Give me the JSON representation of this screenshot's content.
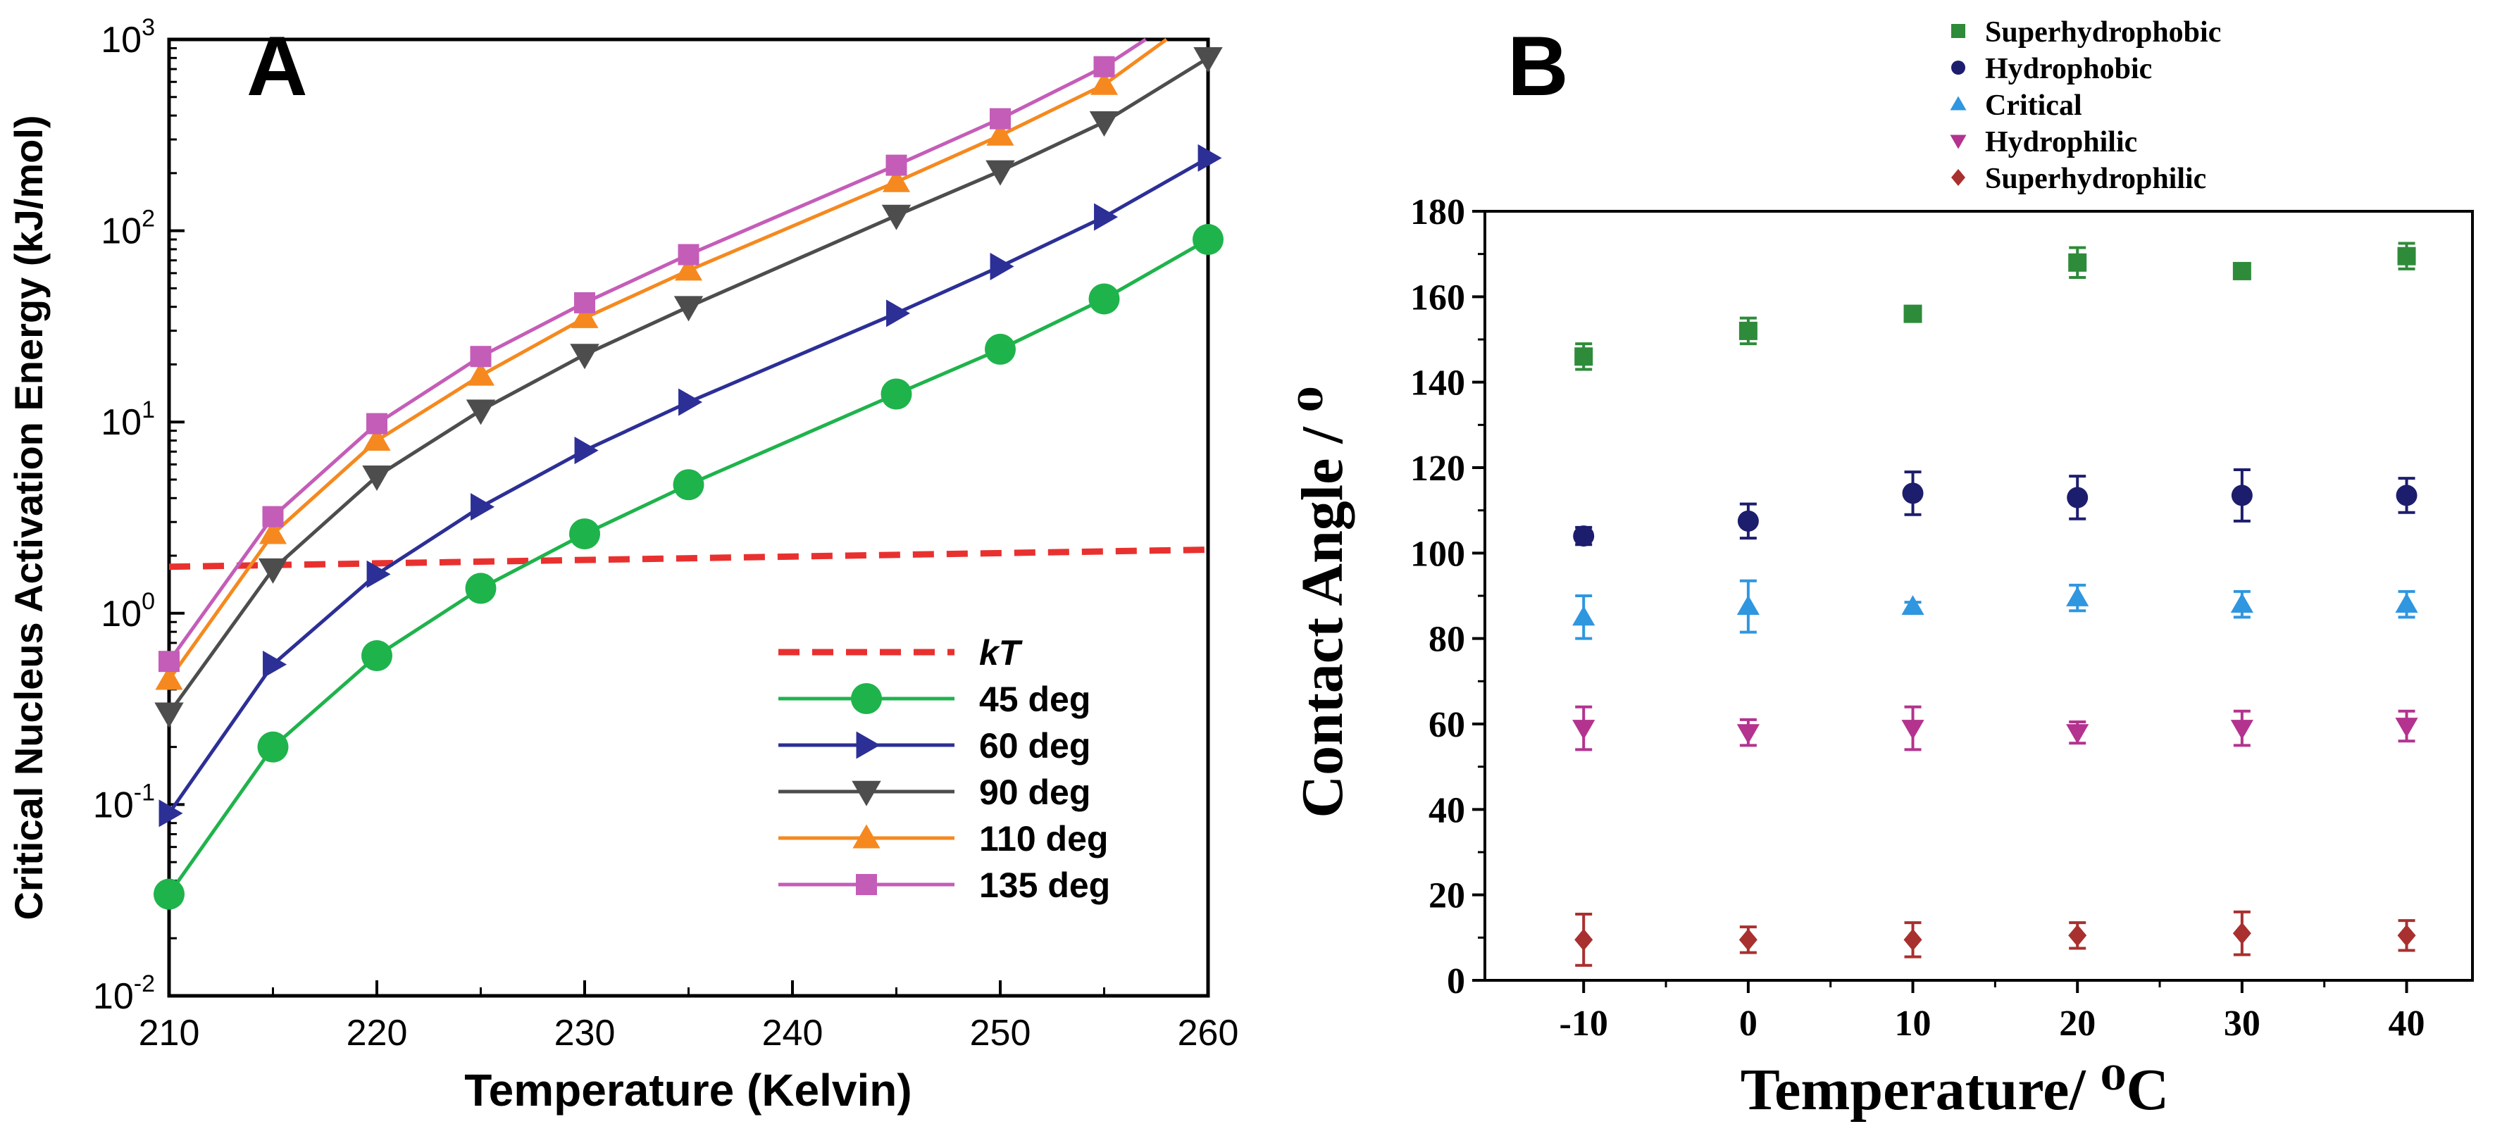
{
  "chart_data": [
    {
      "panel": "A",
      "type": "line",
      "yscale": "log",
      "title": "",
      "xlabel": "Temperature (Kelvin)",
      "ylabel": "Critical Nucleus Activation Energy (kJ/mol)",
      "xlim": [
        210,
        260
      ],
      "ylim": [
        0.01,
        1000
      ],
      "xticks": [
        "210",
        "220",
        "230",
        "240",
        "250",
        "260"
      ],
      "yticks": [
        {
          "value": 0.01,
          "base": "10",
          "exp": "-2"
        },
        {
          "value": 0.1,
          "base": "10",
          "exp": "-1"
        },
        {
          "value": 1,
          "base": "10",
          "exp": "0"
        },
        {
          "value": 10,
          "base": "10",
          "exp": "1"
        },
        {
          "value": 100,
          "base": "10",
          "exp": "2"
        },
        {
          "value": 1000,
          "base": "10",
          "exp": "3"
        }
      ],
      "legend_position": "lower-right",
      "kT": {
        "name": "kT",
        "color": "#e8312f",
        "x": [
          210,
          260
        ],
        "y": [
          1.75,
          2.15
        ]
      },
      "series": [
        {
          "name": "45 deg",
          "color": "#1fb34c",
          "marker": "circle",
          "x": [
            210,
            215,
            220,
            225,
            230,
            235,
            245,
            250,
            255,
            260
          ],
          "y": [
            0.034,
            0.2,
            0.6,
            1.35,
            2.6,
            4.7,
            14,
            24,
            44,
            90
          ]
        },
        {
          "name": "60 deg",
          "color": "#2c2f96",
          "marker": "triangle-right",
          "x": [
            210,
            215,
            220,
            225,
            230,
            235,
            245,
            250,
            255,
            260
          ],
          "y": [
            0.09,
            0.54,
            1.6,
            3.6,
            7.1,
            12.7,
            37,
            65,
            118,
            240
          ]
        },
        {
          "name": "90 deg",
          "color": "#4d4d4d",
          "marker": "triangle-down",
          "x": [
            210,
            215,
            220,
            225,
            230,
            235,
            245,
            250,
            255,
            260
          ],
          "y": [
            0.3,
            1.7,
            5.2,
            11.5,
            22.5,
            40,
            120,
            205,
            370,
            800
          ]
        },
        {
          "name": "110 deg",
          "color": "#f5891f",
          "marker": "triangle-up",
          "x": [
            210,
            215,
            220,
            225,
            230,
            235,
            245,
            250,
            255,
            258
          ],
          "y": [
            0.45,
            2.6,
            8,
            17.5,
            35,
            62,
            180,
            315,
            580,
            1000
          ]
        },
        {
          "name": "135 deg",
          "color": "#c45db8",
          "marker": "square",
          "x": [
            210,
            215,
            220,
            225,
            230,
            235,
            245,
            250,
            255,
            257
          ],
          "y": [
            0.56,
            3.2,
            9.8,
            22,
            42,
            75,
            220,
            385,
            720,
            1000
          ]
        }
      ]
    },
    {
      "panel": "B",
      "type": "scatter",
      "title": "",
      "xlabel": "Temperature/ ⁰C",
      "ylabel": "Contact Angle / ⁰",
      "xlim": [
        -16,
        44
      ],
      "ylim": [
        0,
        180
      ],
      "xticks": [
        "-10",
        "0",
        "10",
        "20",
        "30",
        "40"
      ],
      "yticks": [
        "0",
        "20",
        "40",
        "60",
        "80",
        "100",
        "120",
        "140",
        "160",
        "180"
      ],
      "legend_position": "top-right",
      "x": [
        -10,
        0,
        10,
        20,
        30,
        40
      ],
      "series": [
        {
          "name": "Superhydrophobic",
          "color": "#2e8b3a",
          "marker": "square",
          "values": [
            146,
            152,
            156,
            168,
            166,
            169.5
          ],
          "errors": [
            3,
            3,
            1.5,
            3.5,
            1.5,
            3
          ]
        },
        {
          "name": "Hydrophobic",
          "color": "#1d1d6e",
          "marker": "circle",
          "values": [
            104,
            107.5,
            114,
            113,
            113.5,
            113.5
          ],
          "errors": [
            2,
            4,
            5,
            5,
            6,
            4
          ]
        },
        {
          "name": "Critical",
          "color": "#2f96e0",
          "marker": "triangle-up",
          "values": [
            85,
            87.5,
            87.5,
            89.5,
            88,
            88
          ],
          "errors": [
            5,
            6,
            1,
            3,
            3,
            3
          ]
        },
        {
          "name": "Hydrophilic",
          "color": "#b3338f",
          "marker": "triangle-down",
          "values": [
            59,
            58,
            59,
            58,
            59,
            59.5
          ],
          "errors": [
            5,
            3,
            5,
            2.5,
            4,
            3.5
          ]
        },
        {
          "name": "Superhydrophilic",
          "color": "#a8302f",
          "marker": "diamond",
          "values": [
            9.5,
            9.5,
            9.5,
            10.5,
            11,
            10.5
          ],
          "errors": [
            6,
            3,
            4,
            3,
            5,
            3.5
          ]
        }
      ]
    }
  ],
  "panel_labels": {
    "a": "A",
    "b": "B"
  }
}
